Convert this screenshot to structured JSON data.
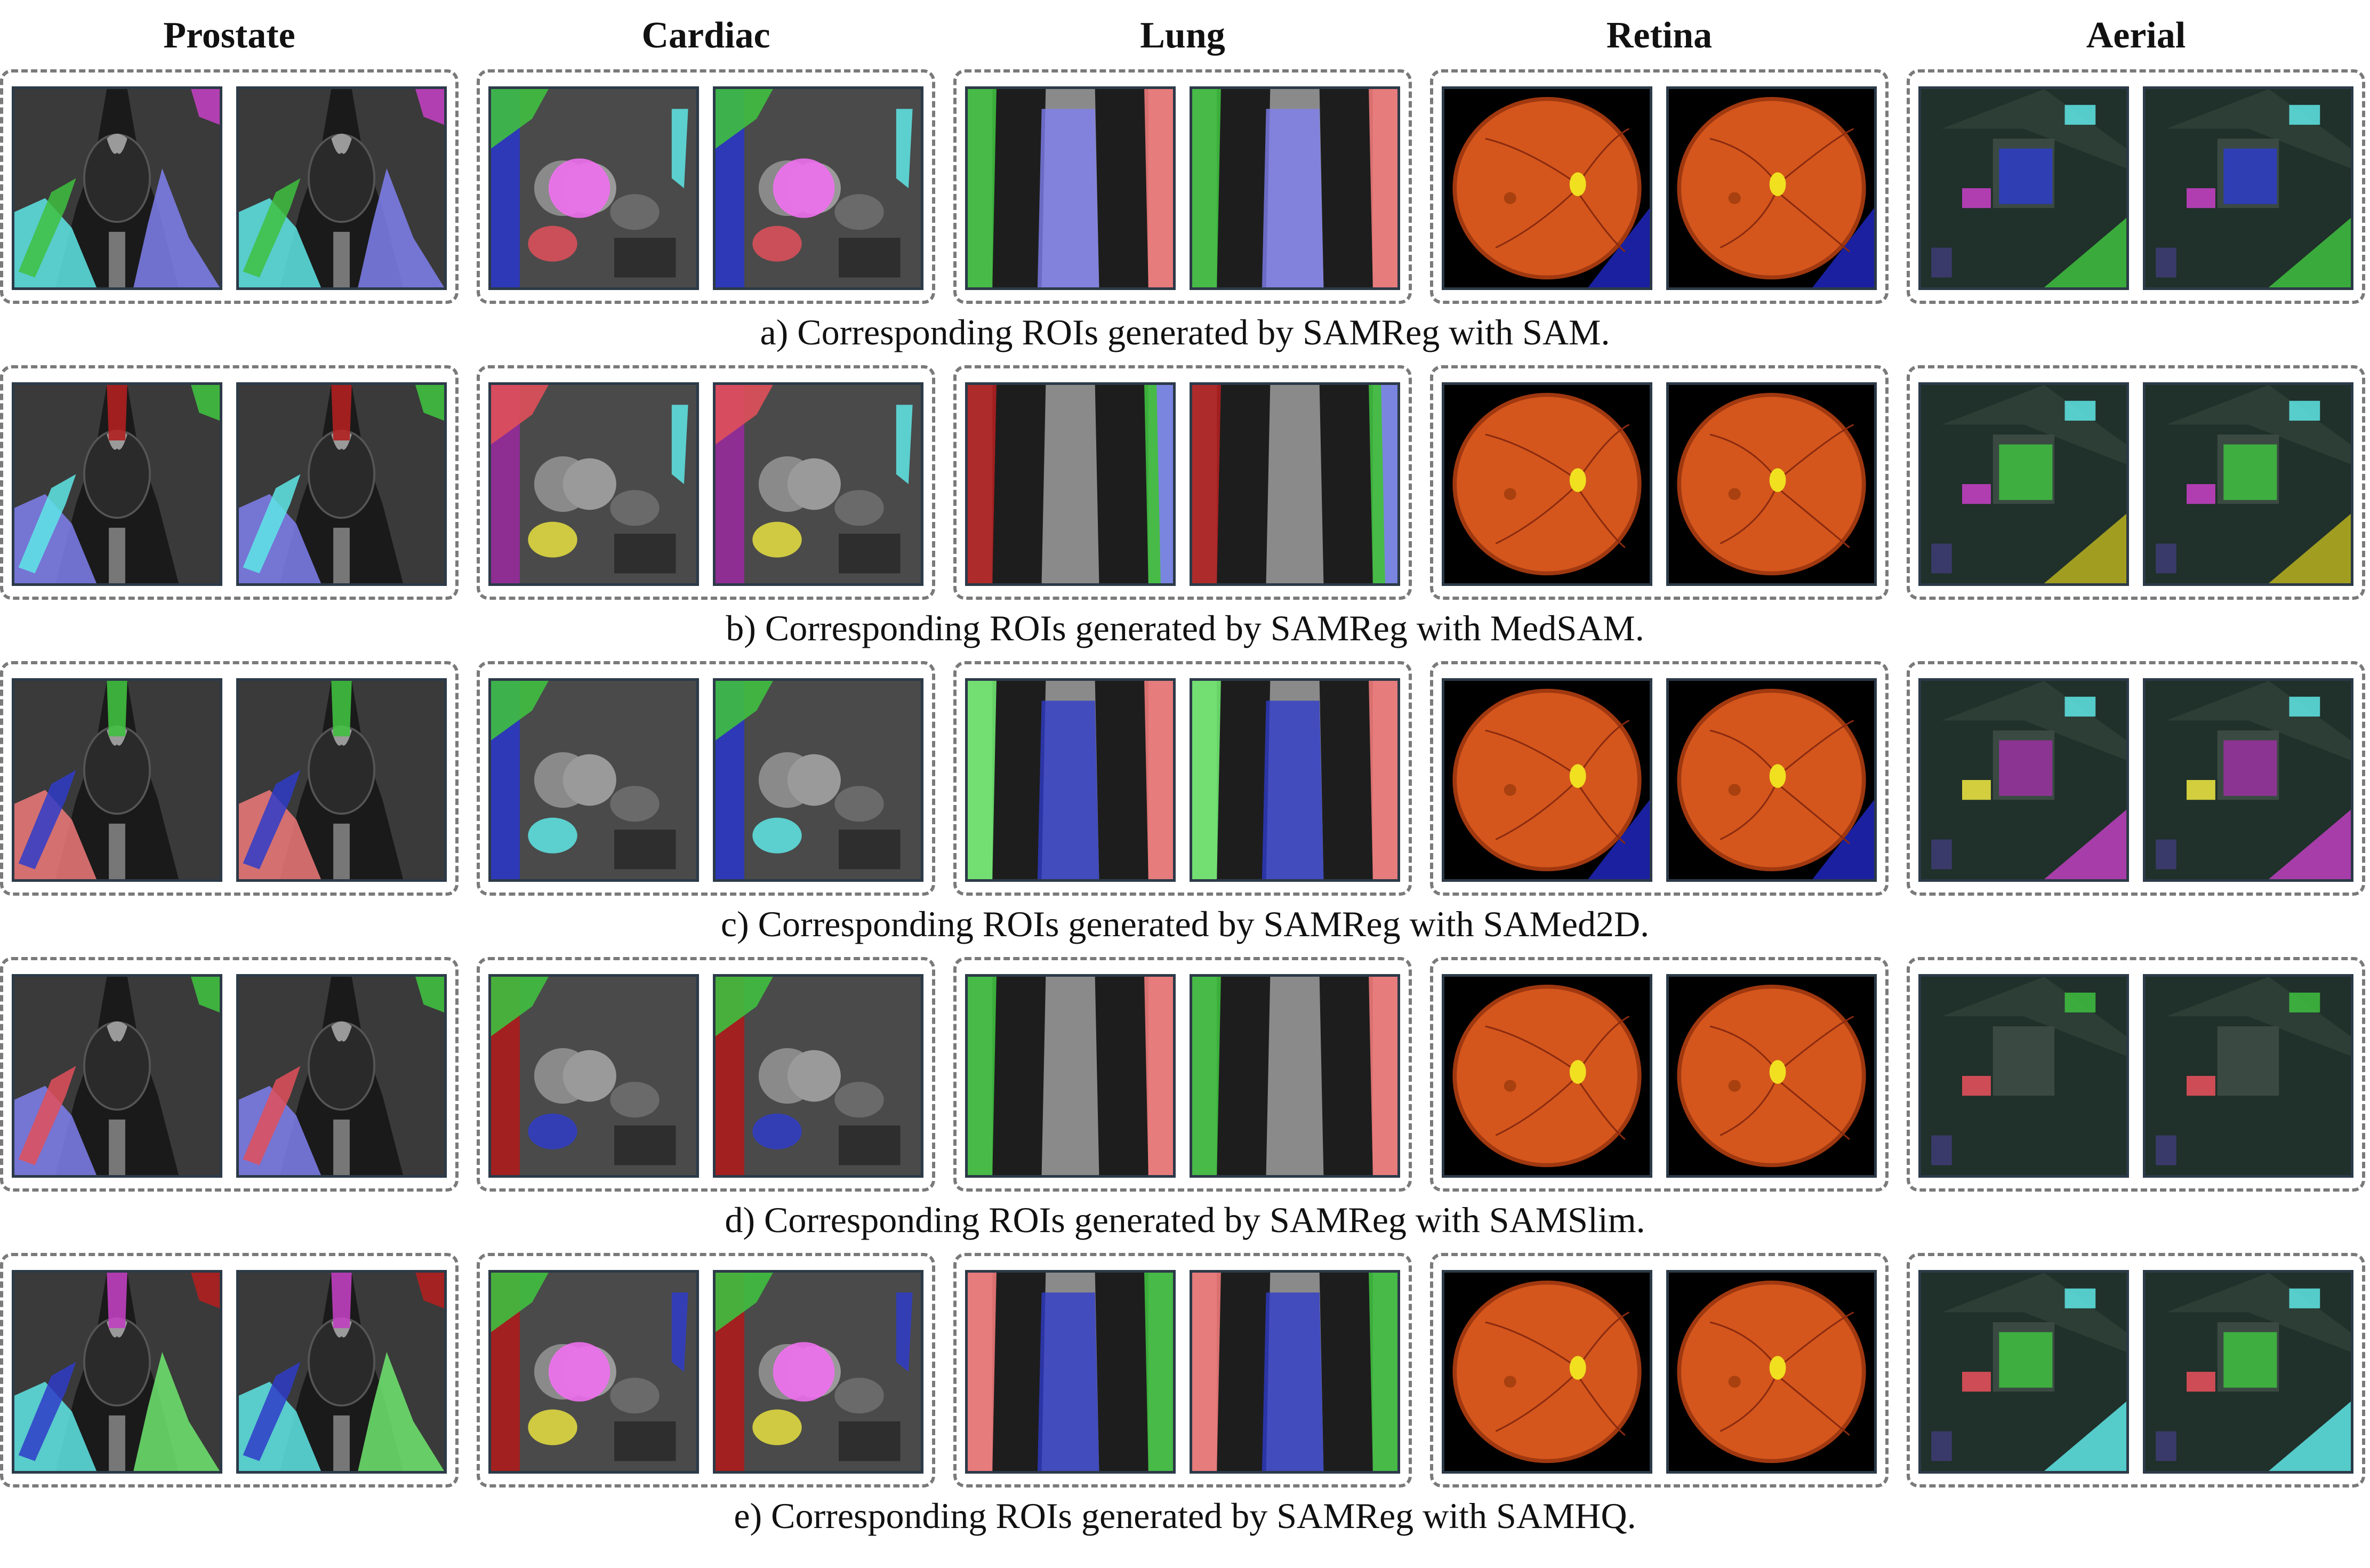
{
  "columns": [
    "Prostate",
    "Cardiac",
    "Lung",
    "Retina",
    "Aerial"
  ],
  "rows": [
    {
      "caption": "a) Corresponding ROIs generated by SAMReg with SAM."
    },
    {
      "caption": "b) Corresponding ROIs generated by SAMReg with MedSAM."
    },
    {
      "caption": "c) Corresponding ROIs generated by SAMReg with SAMed2D."
    },
    {
      "caption": "d) Corresponding ROIs generated by SAMReg with SAMSlim."
    },
    {
      "caption": "e) Corresponding ROIs generated by SAMReg with SAMHQ."
    }
  ]
}
